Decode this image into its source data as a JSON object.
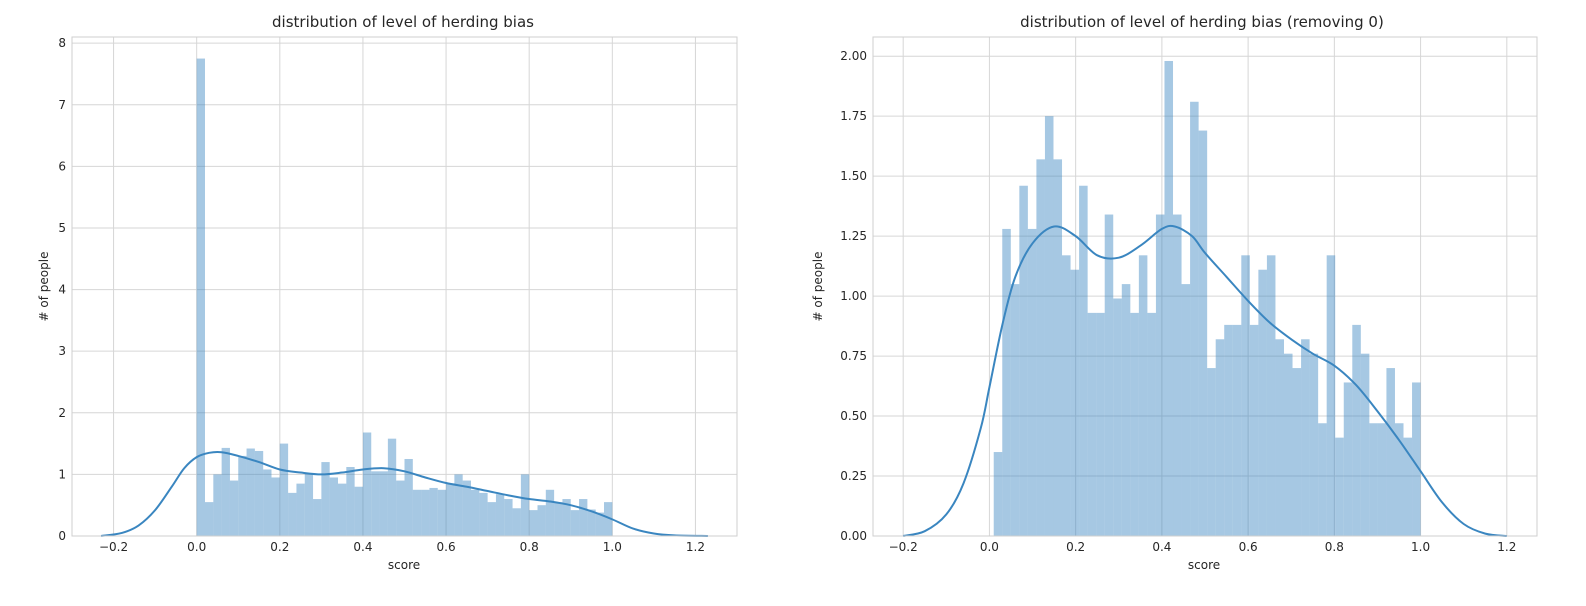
{
  "chart_data": [
    {
      "type": "bar",
      "subtype": "histogram+kde",
      "title": "distribution of level of herding bias",
      "xlabel": "score",
      "ylabel": "# of people",
      "xlim": [
        -0.3,
        1.3
      ],
      "ylim": [
        0,
        8.1
      ],
      "xticks": [
        -0.2,
        0.0,
        0.2,
        0.4,
        0.6,
        0.8,
        1.0,
        1.2
      ],
      "xtick_labels": [
        "−0.2",
        "0.0",
        "0.2",
        "0.4",
        "0.6",
        "0.8",
        "1.0",
        "1.2"
      ],
      "yticks": [
        0,
        1,
        2,
        3,
        4,
        5,
        6,
        7,
        8
      ],
      "ytick_labels": [
        "0",
        "1",
        "2",
        "3",
        "4",
        "5",
        "6",
        "7",
        "8"
      ],
      "grid": true,
      "bins": {
        "start": 0.0,
        "width": 0.02,
        "values": [
          7.75,
          0.55,
          1.0,
          1.43,
          0.9,
          1.3,
          1.42,
          1.38,
          1.08,
          0.95,
          1.5,
          0.7,
          0.85,
          1.02,
          0.6,
          1.2,
          0.95,
          0.85,
          1.12,
          0.8,
          1.68,
          1.05,
          1.05,
          1.58,
          0.9,
          1.25,
          0.75,
          0.75,
          0.78,
          0.75,
          0.85,
          1.0,
          0.9,
          0.75,
          0.7,
          0.55,
          0.68,
          0.6,
          0.45,
          1.0,
          0.42,
          0.5,
          0.75,
          0.55,
          0.6,
          0.42,
          0.6,
          0.43,
          0.38,
          0.55
        ]
      },
      "kde": {
        "x": [
          -0.23,
          -0.18,
          -0.14,
          -0.1,
          -0.06,
          -0.03,
          0.0,
          0.03,
          0.06,
          0.1,
          0.15,
          0.2,
          0.25,
          0.3,
          0.35,
          0.4,
          0.45,
          0.5,
          0.55,
          0.6,
          0.65,
          0.7,
          0.75,
          0.8,
          0.85,
          0.9,
          0.95,
          1.0,
          1.05,
          1.1,
          1.15,
          1.23
        ],
        "y": [
          0.0,
          0.05,
          0.17,
          0.42,
          0.8,
          1.1,
          1.28,
          1.35,
          1.36,
          1.3,
          1.2,
          1.08,
          1.03,
          1.0,
          1.03,
          1.08,
          1.1,
          1.05,
          0.95,
          0.86,
          0.8,
          0.73,
          0.66,
          0.6,
          0.56,
          0.5,
          0.4,
          0.27,
          0.12,
          0.04,
          0.01,
          0.0
        ]
      }
    },
    {
      "type": "bar",
      "subtype": "histogram+kde",
      "title": "distribution of level of herding bias (removing 0)",
      "xlabel": "score",
      "ylabel": "# of people",
      "xlim": [
        -0.27,
        1.27
      ],
      "ylim": [
        0,
        2.08
      ],
      "xticks": [
        -0.2,
        0.0,
        0.2,
        0.4,
        0.6,
        0.8,
        1.0,
        1.2
      ],
      "xtick_labels": [
        "−0.2",
        "0.0",
        "0.2",
        "0.4",
        "0.6",
        "0.8",
        "1.0",
        "1.2"
      ],
      "yticks": [
        0.0,
        0.25,
        0.5,
        0.75,
        1.0,
        1.25,
        1.5,
        1.75,
        2.0
      ],
      "ytick_labels": [
        "0.00",
        "0.25",
        "0.50",
        "0.75",
        "1.00",
        "1.25",
        "1.50",
        "1.75",
        "2.00"
      ],
      "grid": true,
      "bins": {
        "start": 0.01,
        "width": 0.0198,
        "values": [
          0.35,
          1.28,
          1.05,
          1.46,
          1.28,
          1.57,
          1.75,
          1.57,
          1.17,
          1.11,
          1.46,
          0.93,
          0.93,
          1.34,
          0.99,
          1.05,
          0.93,
          1.17,
          0.93,
          1.34,
          1.98,
          1.34,
          1.05,
          1.81,
          1.69,
          0.7,
          0.82,
          0.88,
          0.88,
          1.17,
          0.88,
          1.11,
          1.17,
          0.82,
          0.76,
          0.7,
          0.82,
          0.76,
          0.47,
          1.17,
          0.41,
          0.64,
          0.88,
          0.76,
          0.47,
          0.47,
          0.7,
          0.47,
          0.41,
          0.64
        ]
      },
      "kde": {
        "x": [
          -0.2,
          -0.15,
          -0.1,
          -0.06,
          -0.02,
          0.0,
          0.03,
          0.06,
          0.1,
          0.15,
          0.2,
          0.25,
          0.3,
          0.35,
          0.4,
          0.43,
          0.47,
          0.5,
          0.55,
          0.6,
          0.65,
          0.7,
          0.75,
          0.8,
          0.85,
          0.9,
          0.95,
          1.0,
          1.05,
          1.1,
          1.15,
          1.2
        ],
        "y": [
          0.0,
          0.02,
          0.09,
          0.22,
          0.45,
          0.62,
          0.88,
          1.08,
          1.22,
          1.29,
          1.25,
          1.17,
          1.16,
          1.21,
          1.28,
          1.29,
          1.25,
          1.18,
          1.08,
          0.98,
          0.89,
          0.82,
          0.76,
          0.71,
          0.63,
          0.52,
          0.4,
          0.27,
          0.14,
          0.05,
          0.01,
          0.0
        ]
      }
    }
  ]
}
